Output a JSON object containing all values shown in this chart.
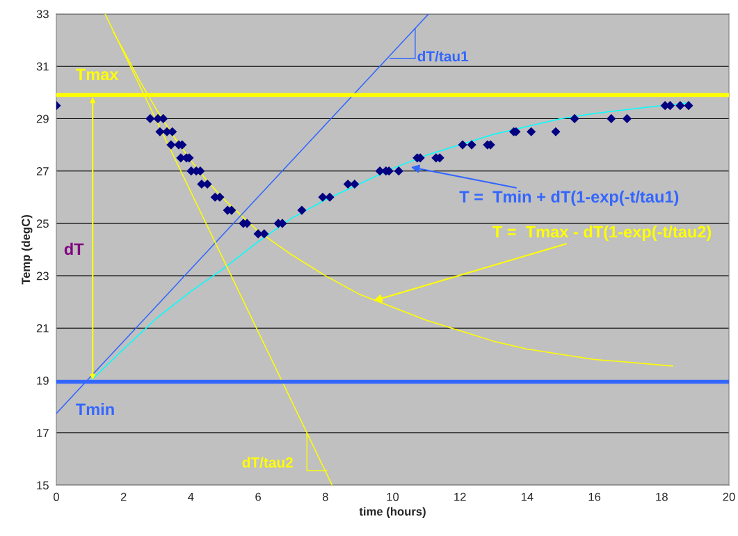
{
  "chart_data": {
    "type": "scatter",
    "xlabel": "time (hours)",
    "ylabel": "Temp (degC)",
    "xlim": [
      0,
      20
    ],
    "xticks": [
      0,
      2,
      4,
      6,
      8,
      10,
      12,
      14,
      16,
      18,
      20
    ],
    "ylim": [
      15,
      33
    ],
    "yticks": [
      15,
      17,
      19,
      21,
      23,
      25,
      27,
      29,
      31,
      33
    ],
    "grid": "y",
    "series": [
      {
        "marker": "diamond",
        "color": "#000080",
        "x": [
          0,
          2.79,
          3.02,
          3.18,
          3.08,
          3.29,
          3.45,
          3.41,
          3.64,
          3.74,
          3.7,
          3.87,
          3.95,
          4.01,
          4.16,
          4.28,
          4.32,
          4.49,
          4.72,
          4.86,
          5.09,
          5.21,
          5.56,
          5.67,
          6.0,
          6.18,
          6.6,
          6.72,
          7.3,
          7.92,
          8.13,
          8.67,
          8.87,
          9.62,
          9.8,
          9.89,
          10.18,
          10.73,
          10.82,
          11.29,
          11.4,
          12.08,
          12.35,
          12.82,
          12.91,
          13.6,
          13.67,
          14.12,
          14.85,
          15.41,
          16.5,
          16.97,
          18.1,
          18.25,
          18.55,
          18.8
        ],
        "values": [
          29.5,
          29,
          29,
          29,
          28.5,
          28.5,
          28.5,
          28,
          28,
          28,
          27.5,
          27.5,
          27.5,
          27,
          27,
          27,
          26.5,
          26.5,
          26,
          26,
          25.5,
          25.5,
          25,
          25,
          24.6,
          24.6,
          25,
          25,
          25.5,
          26,
          26,
          26.5,
          26.5,
          27,
          27,
          27,
          27,
          27.5,
          27.5,
          27.5,
          27.5,
          28,
          28,
          28,
          28,
          28.5,
          28.5,
          28.5,
          28.5,
          29,
          29,
          29,
          29.5,
          29.5,
          29.5,
          29.5
        ]
      },
      {
        "type": "line",
        "color": "#00ffff",
        "x": [
          1.0,
          2.0,
          3.0,
          4.0,
          5.0,
          6.0,
          7.0,
          8.0,
          9.0,
          10.0,
          11.0,
          12.0,
          13.0,
          14.0,
          15.0,
          16.0,
          17.0,
          18.0,
          18.8
        ],
        "values": [
          18.96,
          20.2,
          21.4,
          22.4,
          23.3,
          24.3,
          25.2,
          25.9,
          26.5,
          27.1,
          27.6,
          28.0,
          28.4,
          28.7,
          29.0,
          29.2,
          29.35,
          29.5,
          29.6
        ]
      },
      {
        "type": "line",
        "color": "#ffff00",
        "x": [
          1.7,
          2.0,
          2.5,
          3.0,
          3.5,
          4.0,
          4.5,
          5.0,
          5.5,
          6.0,
          7.0,
          8.0,
          9.0,
          10.0,
          11.0,
          12.0,
          13.0,
          14.0,
          15.0,
          16.0,
          17.0,
          18.33
        ],
        "values": [
          32.3,
          31.6,
          30.4,
          29.3,
          28.3,
          27.4,
          26.6,
          25.9,
          25.3,
          24.7,
          23.8,
          23.0,
          22.3,
          21.8,
          21.3,
          20.9,
          20.5,
          20.2,
          20.0,
          19.8,
          19.7,
          19.55
        ]
      },
      {
        "type": "line",
        "color": "#3366ff",
        "x": [
          0,
          11.07
        ],
        "values": [
          17.74,
          33
        ]
      },
      {
        "type": "line",
        "color": "#ffff00",
        "x": [
          1.45,
          8.2
        ],
        "values": [
          33,
          15
        ]
      }
    ],
    "ref_lines": [
      {
        "axis": "y",
        "value": 29.9,
        "label": "Tmax",
        "color": "#ffff00"
      },
      {
        "axis": "y",
        "value": 18.95,
        "label": "Tmin",
        "color": "#3366ff"
      }
    ],
    "annotations": [
      "dT",
      {
        "text": "dT/tau1",
        "x": 10.67,
        "y": 32.44
      },
      {
        "text": "dT/tau2",
        "x": 7.45,
        "y": 17.0
      },
      "T =  Tmin + dT(1-exp(-t/tau1)",
      {
        "text": "T =  Tmax - dT(1-exp(-t/tau2)",
        "x": 9.43,
        "y": 22.04
      }
    ]
  }
}
